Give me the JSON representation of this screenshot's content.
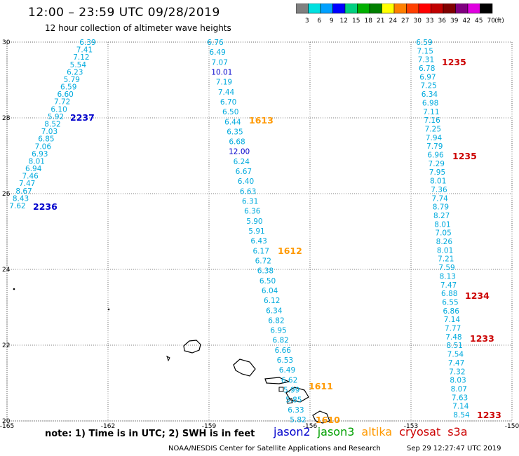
{
  "header": {
    "title": "12:00 – 23:59 UTC 09/28/2019",
    "subtitle": "12 hour collection of altimeter wave heights"
  },
  "colorbar": {
    "colors": [
      "#808080",
      "#00e0e0",
      "#00a0ff",
      "#0000ff",
      "#00d080",
      "#00b000",
      "#008000",
      "#ffff00",
      "#ff8000",
      "#ff4000",
      "#ff0000",
      "#c00000",
      "#800000",
      "#800080",
      "#e000e0",
      "#000000"
    ],
    "labels": [
      "3",
      "6",
      "9",
      "12",
      "15",
      "18",
      "21",
      "24",
      "27",
      "30",
      "33",
      "36",
      "39",
      "42",
      "45",
      "70",
      "(ft)"
    ]
  },
  "axes": {
    "lon_ticks": [
      "-165",
      "-162",
      "-159",
      "-156",
      "-153",
      "-150"
    ],
    "lat_ticks": [
      "20",
      "22",
      "24",
      "26",
      "28",
      "30"
    ]
  },
  "satellites": [
    {
      "name": "jason2",
      "color": "#0000cc"
    },
    {
      "name": "jason3",
      "color": "#00a000"
    },
    {
      "name": "altika",
      "color": "#ff9900"
    },
    {
      "name": "cryosat",
      "color": "#cc0000"
    },
    {
      "name": "s3a",
      "color": "#cc0000"
    }
  ],
  "tracks": [
    {
      "values": [
        "6.39",
        "7.41",
        "7.12",
        "5.54",
        "6.23",
        "5.79",
        "6.59",
        "6.60",
        "7.72",
        "6.10",
        "5.92",
        "8.52",
        "7.03",
        "6.85",
        "7.06",
        "6.93",
        "8.01",
        "6.94",
        "7.46",
        "7.47",
        "8.67",
        "8.43",
        "7.62"
      ],
      "time_labels": [
        {
          "text": "2237",
          "color": "#0000cc"
        },
        {
          "text": "2236",
          "color": "#0000cc"
        }
      ]
    },
    {
      "values": [
        "6.76",
        "6.49",
        "7.07",
        "10.01",
        "7.19",
        "7.44",
        "6.70",
        "6.50",
        "6.44",
        "6.35",
        "6.68",
        "12.00",
        "6.24",
        "6.67",
        "6.40",
        "6.63",
        "6.31",
        "6.36",
        "5.90",
        "5.91",
        "6.43",
        "6.17",
        "6.72",
        "6.38",
        "6.50",
        "6.04",
        "6.12",
        "6.34",
        "6.82",
        "6.95",
        "6.82",
        "6.66",
        "6.53",
        "6.49",
        "6.62",
        "5.99",
        "5.85",
        "6.33",
        "5.82"
      ],
      "time_labels": [
        {
          "text": "1613",
          "color": "#ff9900"
        },
        {
          "text": "1612",
          "color": "#ff9900"
        },
        {
          "text": "1611",
          "color": "#ff9900"
        },
        {
          "text": "1610",
          "color": "#ff9900"
        }
      ]
    },
    {
      "values": [
        "6.59",
        "7.15",
        "7.31",
        "6.78",
        "6.97",
        "7.25",
        "6.34",
        "6.98",
        "7.11",
        "7.16",
        "7.25",
        "7.94",
        "7.79",
        "6.96",
        "7.29",
        "7.95",
        "8.01",
        "7.36",
        "7.74",
        "8.79",
        "8.27",
        "8.01",
        "7.05",
        "8.26",
        "8.01",
        "7.21",
        "7.59",
        "8.13",
        "7.47",
        "6.88",
        "6.55",
        "6.86",
        "7.14",
        "7.77",
        "7.48",
        "8.51",
        "7.54",
        "7.47",
        "7.32",
        "8.03",
        "8.07",
        "7.63",
        "7.14",
        "8.54"
      ],
      "time_labels": [
        {
          "text": "1235",
          "color": "#cc0000"
        },
        {
          "text": "1235",
          "color": "#cc0000"
        },
        {
          "text": "1234",
          "color": "#cc0000"
        },
        {
          "text": "1233",
          "color": "#cc0000"
        },
        {
          "text": "1233",
          "color": "#cc0000"
        }
      ]
    }
  ],
  "footer": {
    "note": "note:  1) Time is in UTC;  2) SWH is in feet",
    "credit": "NOAA/NESDIS Center for Satellite Applications and Research",
    "timestamp": "Sep 29 12:27:47 UTC 2019"
  }
}
